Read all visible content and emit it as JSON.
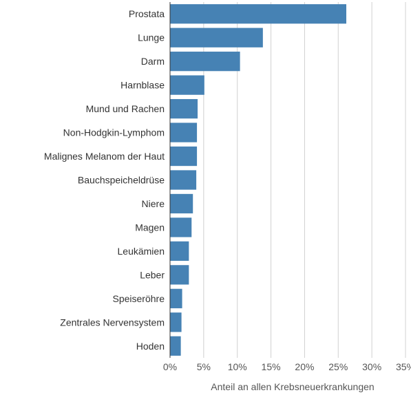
{
  "chart_data": {
    "type": "bar",
    "orientation": "horizontal",
    "categories": [
      "Prostata",
      "Lunge",
      "Darm",
      "Harnblase",
      "Mund und Rachen",
      "Non-Hodgkin-Lymphom",
      "Malignes Melanom der Haut",
      "Bauchspeicheldrüse",
      "Niere",
      "Magen",
      "Leukämien",
      "Leber",
      "Speiseröhre",
      "Zentrales Nervensystem",
      "Hoden"
    ],
    "values": [
      26.2,
      13.8,
      10.4,
      5.1,
      4.1,
      4.0,
      4.0,
      3.9,
      3.4,
      3.2,
      2.8,
      2.8,
      1.8,
      1.7,
      1.6
    ],
    "xlabel": "Anteil an allen Krebsneuerkrankungen",
    "xlim": [
      0,
      35
    ],
    "x_ticks": [
      "0%",
      "5%",
      "10%",
      "15%",
      "20%",
      "25%",
      "30%",
      "35%"
    ],
    "grid": "vertical",
    "color": "#4682b4"
  }
}
